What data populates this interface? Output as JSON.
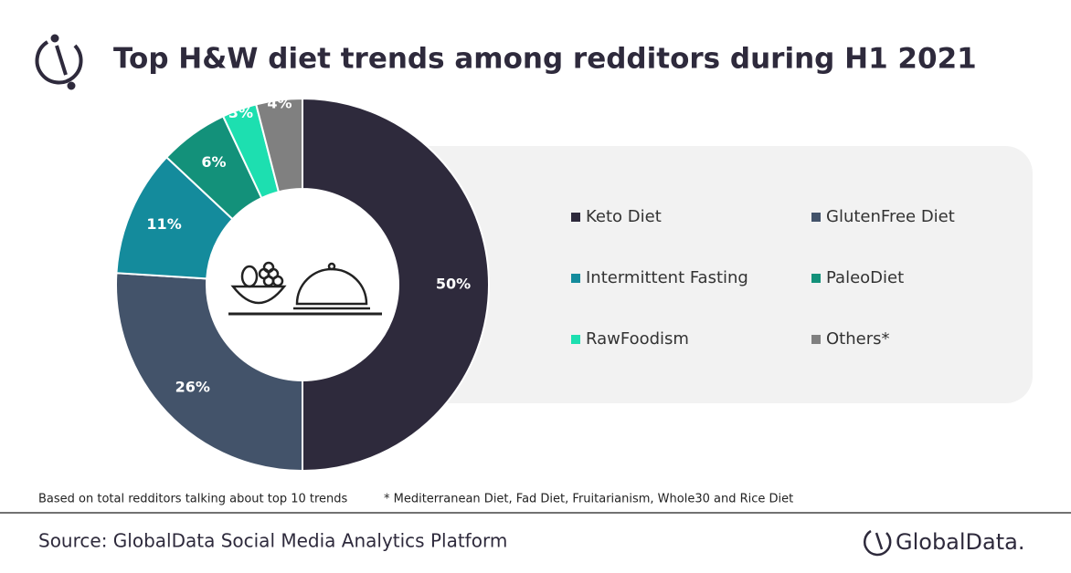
{
  "chart_data": {
    "type": "donut",
    "title": "Top H&W diet trends among redditors during H1 2021",
    "categories": [
      "Keto Diet",
      "GlutenFree Diet",
      "Intermittent Fasting",
      "PaleoDiet",
      "RawFoodism",
      "Others*"
    ],
    "values": [
      50,
      26,
      11,
      6,
      3,
      4
    ],
    "value_labels": [
      "50%",
      "26%",
      "11%",
      "6%",
      "3%",
      "4%"
    ],
    "colors": [
      "#2e2a3c",
      "#43536a",
      "#148b9c",
      "#13917a",
      "#1ddfb0",
      "#808080"
    ],
    "notes": [
      "Based on total redditors talking about top 10 trends",
      "* Mediterranean Diet, Fad Diet, Fruitarianism, Whole30 and Rice Diet"
    ],
    "source": "Source: GlobalData Social Media Analytics Platform",
    "brand": "GlobalData."
  }
}
